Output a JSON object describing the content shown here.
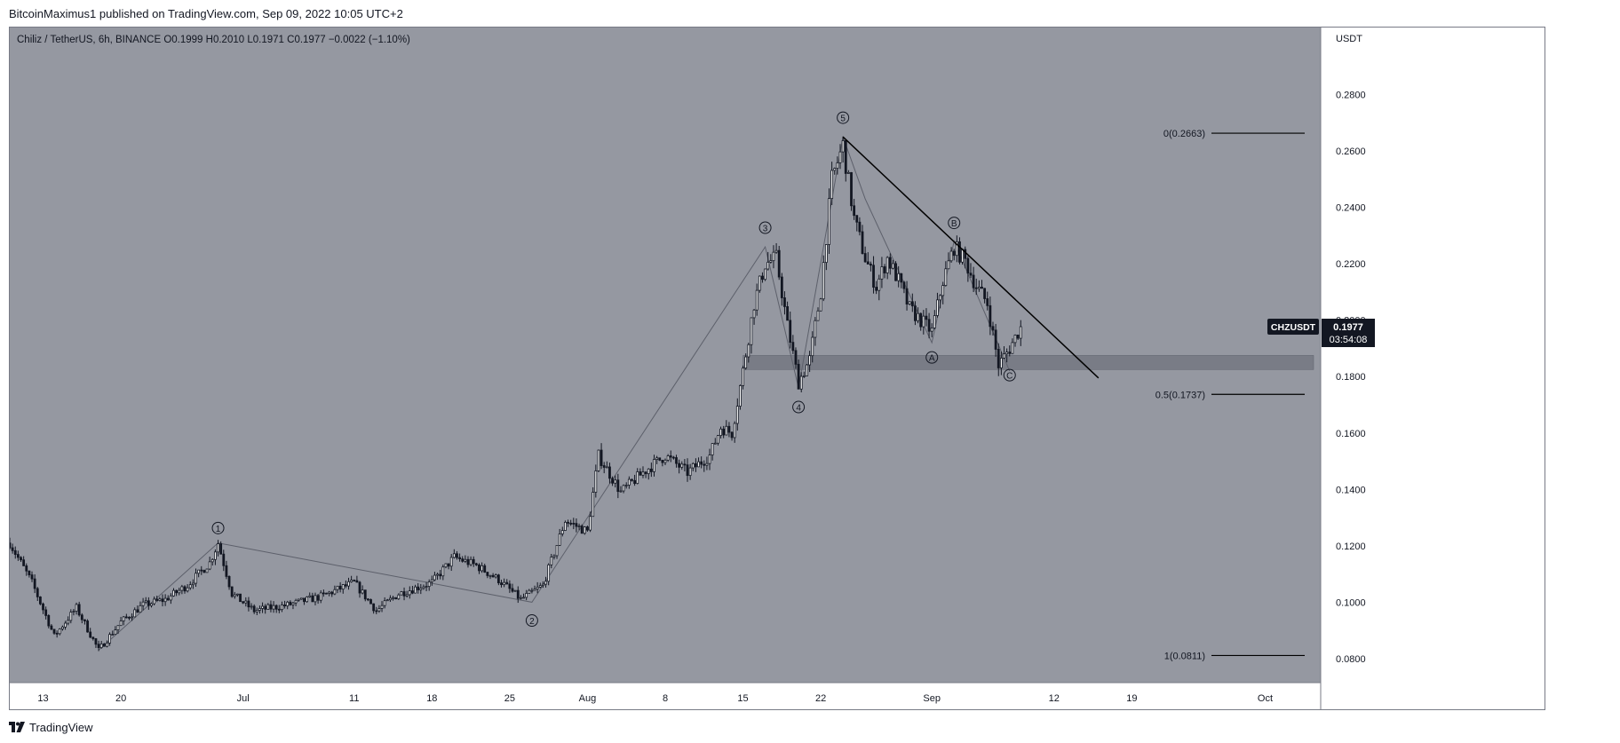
{
  "header": {
    "text": "BitcoinMaximus1 published on TradingView.com, Sep 09, 2022 10:05 UTC+2"
  },
  "footer": {
    "brand": "TradingView"
  },
  "colors": {
    "plot_bg": "#9598a1",
    "axis_bg": "#ffffff",
    "candle": "#131722",
    "trendline": "#000000",
    "wave_line": "#5d606b",
    "support_zone": "#6e717b",
    "price_label_bg": "#131722",
    "price_label_fg": "#ffffff"
  },
  "chart_data": {
    "type": "candlestick",
    "symbol_bar": {
      "name": "Chiliz / TetherUS, 6h, BINANCE",
      "open_label": "O",
      "open": "0.1999",
      "high_label": "H",
      "high": "0.2010",
      "low_label": "L",
      "low": "0.1971",
      "close_label": "C",
      "close": "0.1977",
      "change": "−0.0022 (−1.10%)"
    },
    "y_axis": {
      "unit": "USDT",
      "range": [
        0.074,
        0.3
      ],
      "ticks": [
        "0.2800",
        "0.2600",
        "0.2400",
        "0.2200",
        "0.2000",
        "0.1800",
        "0.1600",
        "0.1400",
        "0.1200",
        "0.1000",
        "0.0800"
      ]
    },
    "x_axis": {
      "labels": [
        "13",
        "20",
        "Jul",
        "11",
        "18",
        "25",
        "Aug",
        "8",
        "15",
        "22",
        "Sep",
        "12",
        "19",
        "Oct"
      ],
      "label_dates": [
        "2022-06-13",
        "2022-06-20",
        "2022-07-01",
        "2022-07-11",
        "2022-07-18",
        "2022-07-25",
        "2022-08-01",
        "2022-08-08",
        "2022-08-15",
        "2022-08-22",
        "2022-09-01",
        "2022-09-12",
        "2022-09-19",
        "2022-10-01"
      ],
      "range": [
        "2022-06-10",
        "2022-10-06"
      ]
    },
    "price_path": [
      [
        "2022-06-10",
        0.121
      ],
      [
        "2022-06-12",
        0.107
      ],
      [
        "2022-06-14",
        0.088
      ],
      [
        "2022-06-16",
        0.098
      ],
      [
        "2022-06-18",
        0.083
      ],
      [
        "2022-06-20",
        0.093
      ],
      [
        "2022-06-22",
        0.099
      ],
      [
        "2022-06-24",
        0.101
      ],
      [
        "2022-06-26",
        0.106
      ],
      [
        "2022-06-28",
        0.114
      ],
      [
        "2022-06-28T18:00",
        0.121
      ],
      [
        "2022-06-30",
        0.103
      ],
      [
        "2022-07-02",
        0.097
      ],
      [
        "2022-07-05",
        0.099
      ],
      [
        "2022-07-08",
        0.102
      ],
      [
        "2022-07-11",
        0.107
      ],
      [
        "2022-07-13",
        0.097
      ],
      [
        "2022-07-15",
        0.103
      ],
      [
        "2022-07-18",
        0.107
      ],
      [
        "2022-07-20",
        0.116
      ],
      [
        "2022-07-22",
        0.113
      ],
      [
        "2022-07-24",
        0.108
      ],
      [
        "2022-07-26",
        0.101
      ],
      [
        "2022-07-28",
        0.106
      ],
      [
        "2022-07-30",
        0.129
      ],
      [
        "2022-08-01",
        0.125
      ],
      [
        "2022-08-02",
        0.152
      ],
      [
        "2022-08-04",
        0.139
      ],
      [
        "2022-08-06",
        0.146
      ],
      [
        "2022-08-08",
        0.152
      ],
      [
        "2022-08-10",
        0.146
      ],
      [
        "2022-08-12",
        0.152
      ],
      [
        "2022-08-13",
        0.162
      ],
      [
        "2022-08-14",
        0.16
      ],
      [
        "2022-08-15",
        0.182
      ],
      [
        "2022-08-16",
        0.206
      ],
      [
        "2022-08-17",
        0.22
      ],
      [
        "2022-08-18",
        0.222
      ],
      [
        "2022-08-19",
        0.198
      ],
      [
        "2022-08-20",
        0.178
      ],
      [
        "2022-08-21",
        0.186
      ],
      [
        "2022-08-22",
        0.21
      ],
      [
        "2022-08-23",
        0.25
      ],
      [
        "2022-08-24",
        0.262
      ],
      [
        "2022-08-25",
        0.236
      ],
      [
        "2022-08-26",
        0.222
      ],
      [
        "2022-08-27",
        0.212
      ],
      [
        "2022-08-28",
        0.222
      ],
      [
        "2022-08-29",
        0.214
      ],
      [
        "2022-08-30",
        0.204
      ],
      [
        "2022-09-01",
        0.196
      ],
      [
        "2022-09-02",
        0.214
      ],
      [
        "2022-09-03",
        0.226
      ],
      [
        "2022-09-04",
        0.221
      ],
      [
        "2022-09-05",
        0.212
      ],
      [
        "2022-09-06",
        0.206
      ],
      [
        "2022-09-07",
        0.184
      ],
      [
        "2022-09-08",
        0.19
      ],
      [
        "2022-09-09",
        0.1977
      ]
    ],
    "current_price": {
      "symbol": "CHZUSDT",
      "value": "0.1977",
      "countdown": "03:54:08"
    },
    "fib_levels": [
      {
        "label": "0(0.2663)",
        "value": 0.2663
      },
      {
        "label": "0.5(0.1737)",
        "value": 0.1737
      },
      {
        "label": "1(0.0811)",
        "value": 0.0811
      }
    ],
    "support_zone": [
      0.1825,
      0.1875
    ],
    "descending_trendline": [
      [
        "2022-08-24",
        0.265
      ],
      [
        "2022-09-16",
        0.1795
      ]
    ],
    "wave_lines": [
      [
        [
          "2022-06-18",
          0.083
        ],
        [
          "2022-06-28T18:00",
          0.121
        ],
        [
          "2022-07-27",
          0.1
        ],
        [
          "2022-08-17",
          0.226
        ],
        [
          "2022-08-20",
          0.176
        ],
        [
          "2022-08-24",
          0.265
        ]
      ],
      [
        [
          "2022-08-24",
          0.265
        ],
        [
          "2022-08-26",
          0.243
        ],
        [
          "2022-09-01",
          0.192
        ],
        [
          "2022-09-03",
          0.228
        ],
        [
          "2022-09-08",
          0.182
        ]
      ]
    ],
    "wave_labels": [
      {
        "text": "1",
        "date": "2022-06-28T18:00",
        "price": 0.1263
      },
      {
        "text": "2",
        "date": "2022-07-27",
        "price": 0.0935
      },
      {
        "text": "3",
        "date": "2022-08-17",
        "price": 0.2328
      },
      {
        "text": "4",
        "date": "2022-08-20",
        "price": 0.1692
      },
      {
        "text": "5",
        "date": "2022-08-24",
        "price": 0.2718
      },
      {
        "text": "A",
        "date": "2022-09-01",
        "price": 0.1868
      },
      {
        "text": "B",
        "date": "2022-09-03",
        "price": 0.2345
      },
      {
        "text": "C",
        "date": "2022-09-08",
        "price": 0.1805
      }
    ]
  }
}
